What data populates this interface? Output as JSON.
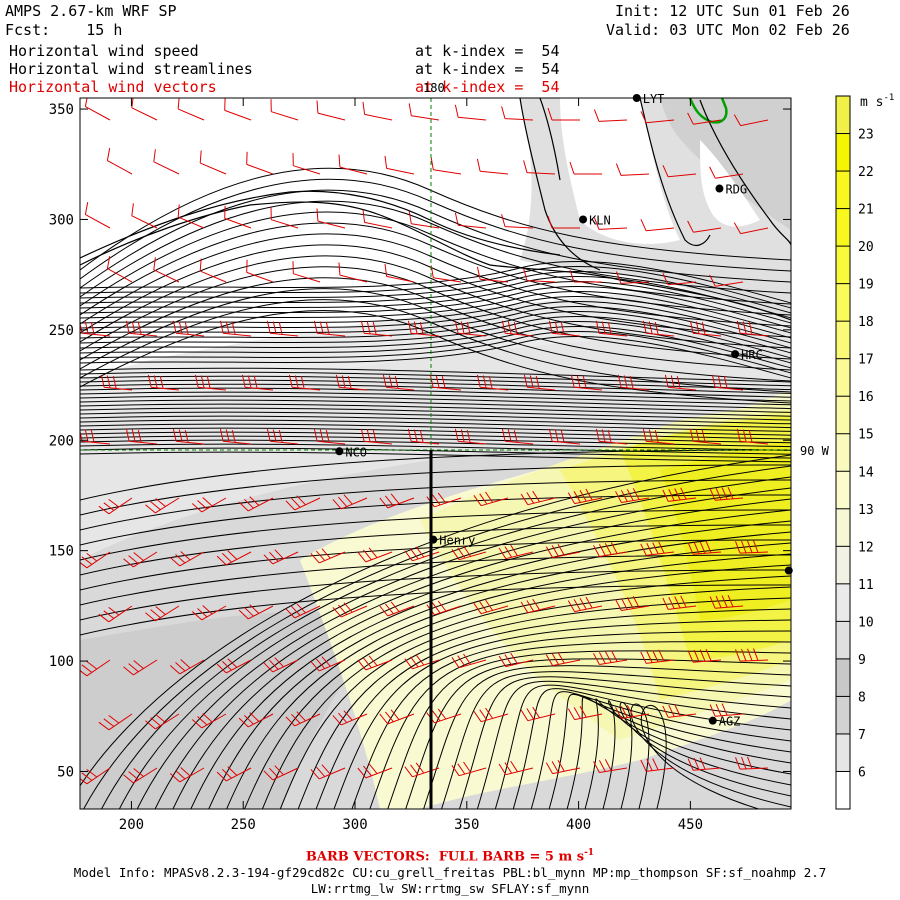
{
  "header": {
    "model_line": "AMPS 2.67-km WRF SP",
    "fcst_label": "Fcst:",
    "fcst_value": "15 h",
    "init_label": "Init:",
    "init_value": "12 UTC Sun 01 Feb 26",
    "valid_label": "Valid:",
    "valid_value": "03 UTC Mon 02 Feb 26"
  },
  "fields": [
    {
      "name": "Horizontal wind speed",
      "level": "at k-index =  54",
      "color": "#000000"
    },
    {
      "name": "Horizontal wind streamlines",
      "level": "at k-index =  54",
      "color": "#000000"
    },
    {
      "name": "Horizontal wind vectors",
      "level": "at k-index =  54",
      "color": "#e00000"
    }
  ],
  "map": {
    "x_ticks": [
      200,
      250,
      300,
      350,
      400,
      450
    ],
    "y_ticks": [
      50,
      100,
      150,
      200,
      250,
      300,
      350
    ],
    "x_range": [
      177,
      495
    ],
    "y_range": [
      33,
      355
    ],
    "meridian_label": "180",
    "meridian_label_2": "90 W",
    "stations": [
      {
        "id": "LYT",
        "x": 426,
        "y": 355
      },
      {
        "id": "RDG",
        "x": 463,
        "y": 314
      },
      {
        "id": "KLN",
        "x": 402,
        "y": 300
      },
      {
        "id": "HRC",
        "x": 470,
        "y": 239
      },
      {
        "id": "NCO",
        "x": 293,
        "y": 195
      },
      {
        "id": "Henry",
        "x": 335,
        "y": 155
      },
      {
        "id": "",
        "x": 494,
        "y": 141
      },
      {
        "id": "AGZ",
        "x": 460,
        "y": 73
      }
    ]
  },
  "colorbar": {
    "unit": "m s",
    "unit_exp": "-1",
    "levels": [
      6,
      7,
      8,
      9,
      10,
      11,
      12,
      13,
      14,
      15,
      16,
      17,
      18,
      19,
      20,
      21,
      22,
      23
    ],
    "colors": [
      "#ffffff",
      "#e6e6e6",
      "#d2d2d2",
      "#c8c8c8",
      "#e0e0e0",
      "#eaeaea",
      "#f2f2e4",
      "#f7f7d6",
      "#fbfbcb",
      "#fafabc",
      "#fafaa8",
      "#fafa96",
      "#fafa78",
      "#fafa5a",
      "#fafa3c",
      "#f8f81e",
      "#f8f81e",
      "#f5f500",
      "#f0f046"
    ]
  },
  "footer": {
    "barb_note_prefix": "BARB VECTORS:  FULL BARB = 5 m s",
    "barb_note_exp": "-1",
    "model_info_1": "Model Info: MPASv8.2.3-194-gf29cd82c CU:cu_grell_freitas PBL:bl_mynn MP:mp_thompson SF:sf_noahmp 2.7",
    "model_info_2": "LW:rrtmg_lw SW:rrtmg_sw SFLAY:sf_mynn"
  }
}
